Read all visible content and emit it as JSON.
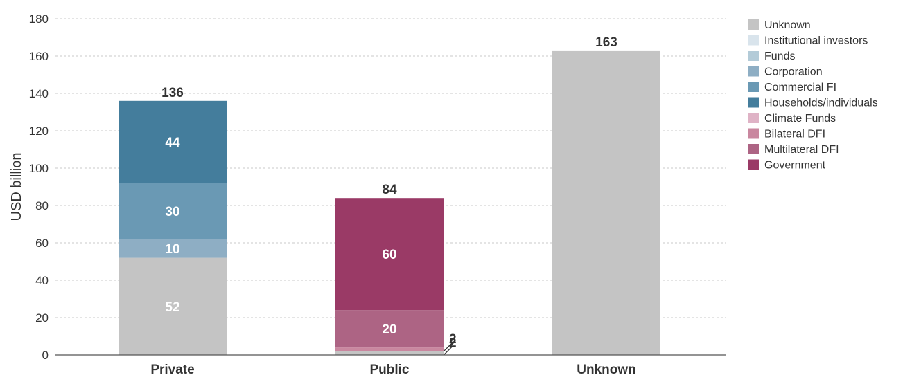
{
  "chart_data": {
    "type": "bar",
    "stacked": true,
    "ylabel": "USD billion",
    "xlabel": "",
    "ylim": [
      0,
      180
    ],
    "yticks": [
      0,
      20,
      40,
      60,
      80,
      100,
      120,
      140,
      160,
      180
    ],
    "grid": "horizontal dashed",
    "categories": [
      "Private",
      "Public",
      "Unknown"
    ],
    "totals": [
      136,
      84,
      163
    ],
    "legend_position": "right",
    "series": [
      {
        "name": "Unknown",
        "color": "#c4c4c4",
        "values": [
          52,
          2,
          163
        ],
        "labels": [
          "52",
          "2",
          ""
        ]
      },
      {
        "name": "Institutional investors",
        "color": "#d9e4ec",
        "values": [
          0,
          0,
          0
        ],
        "labels": [
          "",
          "",
          ""
        ]
      },
      {
        "name": "Funds",
        "color": "#b3cbd8",
        "values": [
          0,
          0,
          0
        ],
        "labels": [
          "",
          "",
          ""
        ]
      },
      {
        "name": "Corporation",
        "color": "#8eaec4",
        "values": [
          10,
          0,
          0
        ],
        "labels": [
          "10",
          "",
          ""
        ]
      },
      {
        "name": "Commercial FI",
        "color": "#6a99b4",
        "values": [
          30,
          0,
          0
        ],
        "labels": [
          "30",
          "",
          ""
        ]
      },
      {
        "name": "Households/individuals",
        "color": "#447d9c",
        "values": [
          44,
          0,
          0
        ],
        "labels": [
          "44",
          "",
          ""
        ]
      },
      {
        "name": "Climate Funds",
        "color": "#dfb3c6",
        "values": [
          0,
          0,
          0
        ],
        "labels": [
          "",
          "",
          ""
        ]
      },
      {
        "name": "Bilateral DFI",
        "color": "#c9879f",
        "values": [
          0,
          2,
          0
        ],
        "labels": [
          "",
          "2",
          ""
        ]
      },
      {
        "name": "Multilateral DFI",
        "color": "#ad6484",
        "values": [
          0,
          20,
          0
        ],
        "labels": [
          "",
          "20",
          ""
        ]
      },
      {
        "name": "Government",
        "color": "#9a3a66",
        "values": [
          0,
          60,
          0
        ],
        "labels": [
          "",
          "60",
          ""
        ]
      }
    ]
  }
}
